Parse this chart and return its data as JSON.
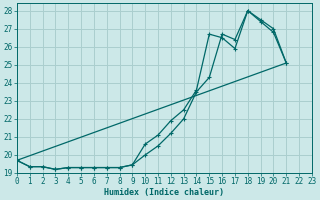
{
  "xlabel": "Humidex (Indice chaleur)",
  "bg_color": "#cce8e8",
  "grid_color": "#aacece",
  "line_color": "#006868",
  "xlim": [
    0,
    23
  ],
  "ylim": [
    19,
    28.4
  ],
  "yticks": [
    19,
    20,
    21,
    22,
    23,
    24,
    25,
    26,
    27,
    28
  ],
  "xtick_labels": [
    "0",
    "1",
    "2",
    "3",
    "4",
    "5",
    "6",
    "7",
    "8",
    "9",
    "10",
    "11",
    "12",
    "13",
    "14",
    "15",
    "16",
    "17",
    "18",
    "19",
    "20",
    "21",
    "22",
    "23"
  ],
  "series": [
    {
      "x": [
        0,
        1,
        2,
        3,
        4,
        5,
        6,
        7,
        8,
        9,
        10,
        11,
        12,
        13,
        14,
        15,
        16,
        17,
        18,
        19,
        20,
        21
      ],
      "y": [
        19.7,
        19.35,
        19.35,
        19.2,
        19.3,
        19.3,
        19.3,
        19.3,
        19.3,
        19.45,
        20.6,
        21.1,
        21.9,
        22.5,
        23.6,
        26.7,
        26.5,
        25.9,
        28.0,
        27.5,
        27.0,
        25.1
      ],
      "marker": true
    },
    {
      "x": [
        0,
        1,
        2,
        3,
        4,
        5,
        6,
        7,
        8,
        9,
        10,
        11,
        12,
        13,
        14,
        15,
        16,
        17,
        18,
        19,
        20,
        21
      ],
      "y": [
        19.7,
        19.35,
        19.35,
        19.2,
        19.3,
        19.3,
        19.3,
        19.3,
        19.3,
        19.45,
        20.0,
        20.5,
        21.2,
        22.0,
        23.5,
        24.3,
        26.7,
        26.4,
        28.0,
        27.4,
        26.8,
        25.1
      ],
      "marker": true
    },
    {
      "x": [
        0,
        21
      ],
      "y": [
        19.7,
        25.1
      ],
      "marker": false
    }
  ],
  "tick_fontsize": 5.5,
  "xlabel_fontsize": 6
}
